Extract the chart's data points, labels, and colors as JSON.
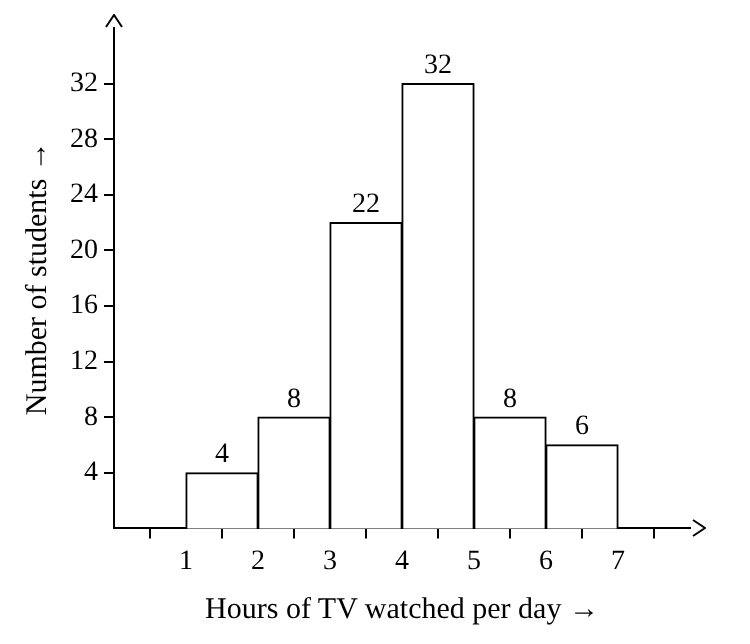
{
  "chart_data": {
    "type": "histogram",
    "xlabel": "Hours of TV watched per day →",
    "ylabel": "Number of students →",
    "bins": [
      1,
      2,
      3,
      4,
      5,
      6,
      7
    ],
    "values": [
      4,
      8,
      22,
      32,
      8,
      6
    ],
    "color": "#ffffff",
    "data_labels": true,
    "xlim": [
      0,
      8
    ],
    "xticks": [
      1,
      2,
      3,
      4,
      5,
      6,
      7
    ],
    "ylim": [
      0,
      36
    ],
    "yticks": [
      4,
      8,
      12,
      16,
      20,
      24,
      28,
      32
    ],
    "grid": false
  }
}
